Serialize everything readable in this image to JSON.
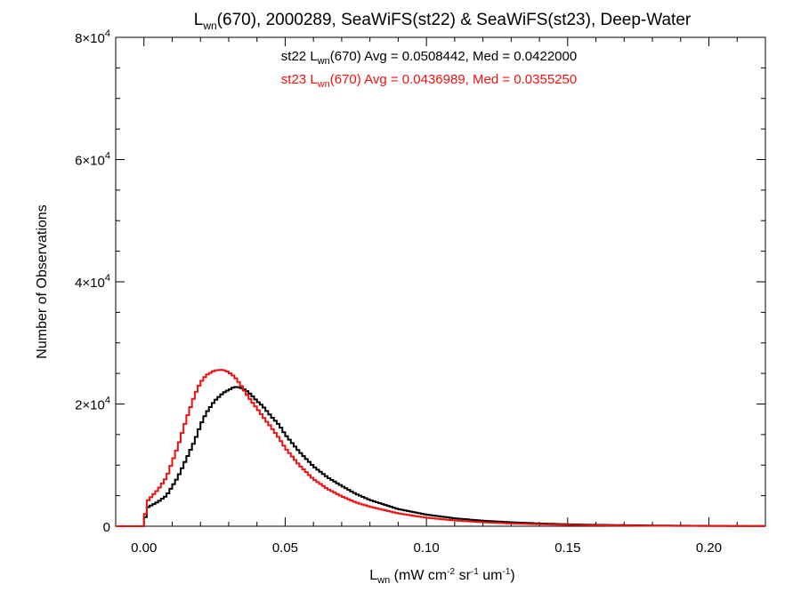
{
  "chart_data": {
    "type": "line",
    "title": {
      "main": "L",
      "sub": "wn",
      "rest": "(670), 2000289, SeaWiFS(st22) & SeaWiFS(st23), Deep-Water"
    },
    "xlabel": {
      "main": "L",
      "sub": "wn",
      "units": [
        {
          "text": " (mW cm",
          "sup": "-2"
        },
        {
          "text": " sr",
          "sup": "-1"
        },
        {
          "text": " um",
          "sup": "-1"
        },
        {
          "text": ")",
          "sup": ""
        }
      ]
    },
    "ylabel": "Number of Observations",
    "xlim": [
      -0.01,
      0.22
    ],
    "ylim": [
      0,
      80000
    ],
    "xticks": [
      {
        "value": 0.0,
        "label": "0.00"
      },
      {
        "value": 0.05,
        "label": "0.05"
      },
      {
        "value": 0.1,
        "label": "0.10"
      },
      {
        "value": 0.15,
        "label": "0.15"
      },
      {
        "value": 0.2,
        "label": "0.20"
      }
    ],
    "yticks": [
      {
        "value": 0,
        "mantissa": "0",
        "exponent": ""
      },
      {
        "value": 20000,
        "mantissa": "2×10",
        "exponent": "4"
      },
      {
        "value": 40000,
        "mantissa": "4×10",
        "exponent": "4"
      },
      {
        "value": 60000,
        "mantissa": "6×10",
        "exponent": "4"
      },
      {
        "value": 80000,
        "mantissa": "8×10",
        "exponent": "4"
      }
    ],
    "annotations": [
      {
        "series": "st22",
        "color": "#000000",
        "prefix": "st22 L",
        "sub": "wn",
        "suffix": "(670) Avg = 0.0508442, Med = 0.0422000"
      },
      {
        "series": "st23",
        "color": "#ee1111",
        "prefix": "st23 L",
        "sub": "wn",
        "suffix": "(670) Avg = 0.0436989, Med = 0.0355250"
      }
    ],
    "series": [
      {
        "name": "st22",
        "color": "#000000",
        "style": "step",
        "x": [
          0.0,
          0.001,
          0.003,
          0.005,
          0.008,
          0.01,
          0.012,
          0.015,
          0.018,
          0.02,
          0.022,
          0.025,
          0.028,
          0.03,
          0.032,
          0.034,
          0.036,
          0.038,
          0.04,
          0.042,
          0.045,
          0.048,
          0.05,
          0.055,
          0.06,
          0.065,
          0.07,
          0.075,
          0.08,
          0.09,
          0.1,
          0.11,
          0.12,
          0.13,
          0.14,
          0.15,
          0.16,
          0.17,
          0.18,
          0.19,
          0.2,
          0.21,
          0.22
        ],
        "y": [
          0,
          3000,
          3500,
          4000,
          5000,
          6500,
          8000,
          11000,
          14000,
          16500,
          18500,
          20500,
          21800,
          22300,
          22800,
          22700,
          22300,
          21500,
          20500,
          19700,
          18000,
          16500,
          15000,
          12200,
          9800,
          8000,
          6600,
          5300,
          4300,
          2800,
          1900,
          1300,
          900,
          650,
          450,
          320,
          230,
          170,
          120,
          90,
          60,
          40,
          30
        ]
      },
      {
        "name": "st23",
        "color": "#ee1111",
        "style": "step",
        "x": [
          0.0,
          0.001,
          0.003,
          0.005,
          0.008,
          0.01,
          0.012,
          0.015,
          0.018,
          0.02,
          0.022,
          0.025,
          0.028,
          0.03,
          0.032,
          0.034,
          0.036,
          0.038,
          0.04,
          0.042,
          0.045,
          0.048,
          0.05,
          0.055,
          0.06,
          0.065,
          0.07,
          0.075,
          0.08,
          0.09,
          0.1,
          0.11,
          0.12,
          0.13,
          0.14,
          0.15,
          0.16,
          0.17,
          0.18,
          0.19,
          0.2,
          0.21,
          0.22
        ],
        "y": [
          0,
          4000,
          5000,
          6000,
          8000,
          10500,
          13000,
          17500,
          21500,
          23500,
          24700,
          25500,
          25600,
          25200,
          24500,
          23300,
          21800,
          20500,
          19300,
          18000,
          16200,
          14300,
          12800,
          10000,
          7700,
          6100,
          4900,
          3900,
          3200,
          2100,
          1400,
          950,
          650,
          450,
          320,
          230,
          160,
          110,
          80,
          55,
          40,
          30,
          20
        ]
      }
    ]
  }
}
